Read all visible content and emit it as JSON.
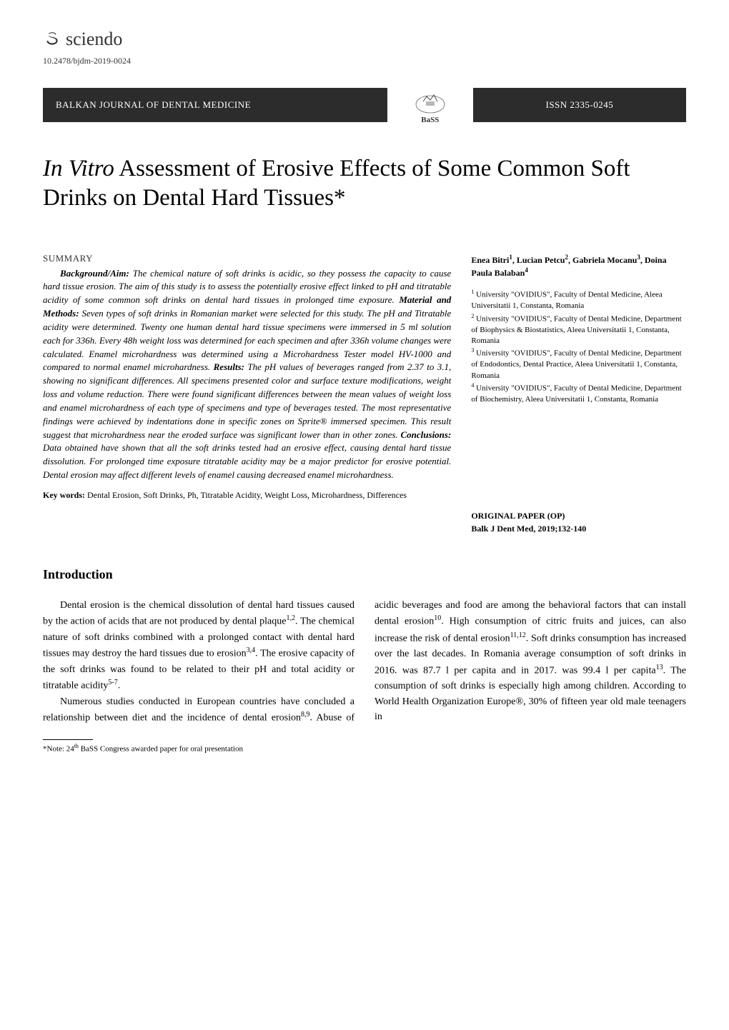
{
  "logo_text": "sciendo",
  "doi": "10.2478/bjdm-2019-0024",
  "journal_bar": {
    "left": "BALKAN JOURNAL OF DENTAL MEDICINE",
    "mid_label": "BaSS",
    "right": "ISSN 2335-0245"
  },
  "title": {
    "italic_part": "In Vitro",
    "rest": " Assessment of Erosive Effects of Some Common Soft Drinks on Dental Hard Tissues*"
  },
  "summary_heading": "SUMMARY",
  "abstract": {
    "bg_label": "Background/Aim:",
    "bg_text": " The chemical nature of soft drinks is acidic, so they possess the capacity to cause hard tissue erosion. The aim of this study is to assess the potentially erosive effect linked to pH and titratable acidity of some common soft drinks on dental hard tissues in prolonged time exposure. ",
    "mm_label": "Material and Methods:",
    "mm_text": " Seven types of soft drinks in Romanian market were selected for this study. The pH and Titratable acidity were determined. Twenty one human dental hard tissue specimens were immersed in 5 ml solution each for 336h. Every 48h weight loss was determined for each specimen and after 336h volume changes were calculated. Enamel microhardness was determined using a Microhardness Tester model HV-1000 and compared to normal enamel microhardness. ",
    "res_label": "Results:",
    "res_text": " The pH values of beverages ranged from 2.37 to 3.1, showing no significant differences. All specimens presented color and surface texture modifications, weight loss and volume reduction.  There were found significant differences between the mean values of weight loss and enamel microhardness of each type of specimens and type of beverages tested. The most representative findings were achieved by indentations done in specific zones on Sprite® immersed specimen. This result suggest that microhardness near the eroded surface was significant lower than in other zones. ",
    "con_label": "Conclusions:",
    "con_text": " Data obtained have shown that all the soft drinks tested had an erosive effect, causing dental hard tissue dissolution. For prolonged time exposure titratable acidity may be a major predictor for erosive potential. Dental erosion may affect different levels of enamel causing decreased enamel microhardness."
  },
  "keywords": {
    "label": "Key words:",
    "text": " Dental Erosion, Soft Drinks, Ph, Titratable Acidity, Weight Loss, Microhardness, Differences"
  },
  "authors_html": "Enea Bitri<sup>1</sup>, Lucian Petcu<sup>2</sup>, Gabriela Mocanu<sup>3</sup>, Doina Paula Balaban<sup>4</sup>",
  "affiliations": [
    {
      "sup": "1",
      "text": " University \"OVIDIUS\", Faculty of Dental Medicine, Aleea Universitatii 1, Constanta, Romania"
    },
    {
      "sup": "2",
      "text": " University \"OVIDIUS\", Faculty of Dental Medicine, Department of Biophysics & Biostatistics, Aleea Universitatii 1, Constanta, Romania"
    },
    {
      "sup": "3",
      "text": " University \"OVIDIUS\", Faculty of Dental Medicine, Department of Endodontics, Dental Practice, Aleea Universitatii 1, Constanta, Romania"
    },
    {
      "sup": "4",
      "text": " University \"OVIDIUS\", Faculty of Dental Medicine, Department of Biochemistry, Aleea Universitatii 1, Constanta, Romania"
    }
  ],
  "paper_type": {
    "line1": "ORIGINAL PAPER (OP)",
    "line2": "Balk J Dent Med, 2019;132-140"
  },
  "intro_heading": "Introduction",
  "intro_para1_pre": "Dental erosion is the chemical dissolution of dental hard tissues caused by the action of acids that are not produced by dental plaque",
  "intro_para1_sup1": "1,2",
  "intro_para1_mid1": ". The chemical nature of soft drinks combined with a prolonged contact with dental hard tissues may destroy the hard tissues due to erosion",
  "intro_para1_sup2": "3,4",
  "intro_para1_mid2": ". The erosive capacity of the soft drinks was found to be related to their pH and total acidity or titratable acidity",
  "intro_para1_sup3": "5-7",
  "intro_para1_end": ".",
  "intro_para2_a": "Numerous studies conducted in European countries have concluded a relationship between diet and the incidence of dental erosion",
  "intro_para2_s1": "8,9",
  "intro_para2_b": ". Abuse of acidic beverages and food are among the behavioral factors that can install dental erosion",
  "intro_para2_s2": "10",
  "intro_para2_c": ". High consumption of citric fruits and juices, can also increase the risk of dental erosion",
  "intro_para2_s3": "11,12",
  "intro_para2_d": ". Soft drinks consumption has increased over the last decades. In Romania average consumption of soft drinks in 2016. was 87.7 l per capita and in 2017. was 99.4 l per capita",
  "intro_para2_s4": "13",
  "intro_para2_e": ". The consumption of soft drinks is especially high among children. According to World Health Organization Europe®, 30% of fifteen year old male teenagers in",
  "footnote_html": "*Note: 24<sup>th</sup> BaSS  Congress awarded paper for oral presentation",
  "colors": {
    "bar_bg": "#2c2c2c",
    "text": "#000000",
    "muted": "#333333"
  }
}
